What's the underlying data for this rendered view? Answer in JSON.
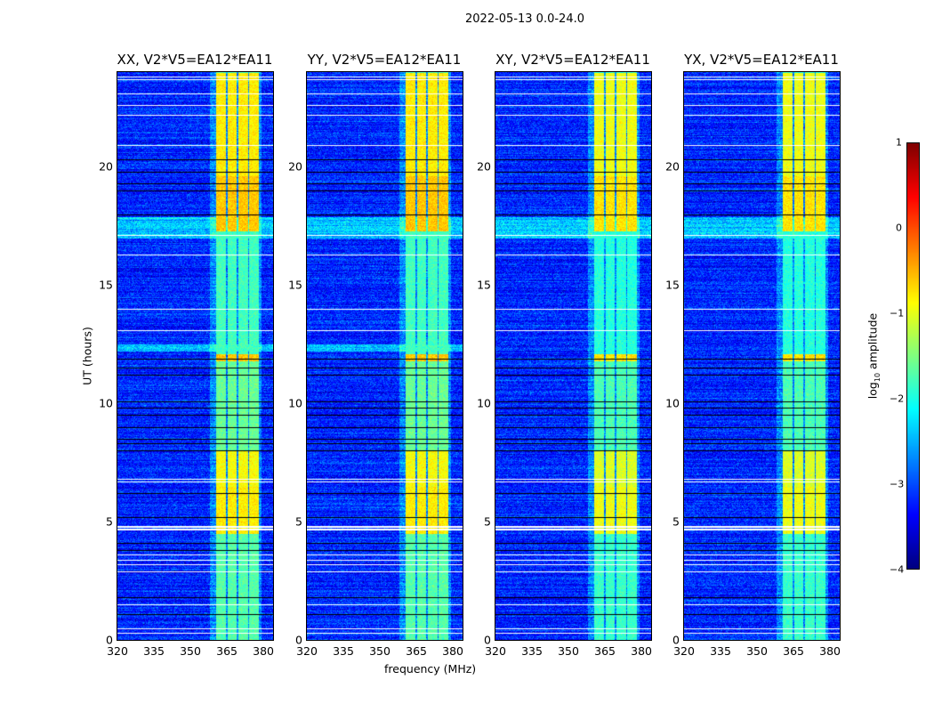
{
  "chart_data": {
    "type": "heatmap",
    "title": "2022-05-13 0.0-24.0",
    "panels": [
      {
        "title": "XX, V2*V5=EA12*EA11"
      },
      {
        "title": "YY, V2*V5=EA12*EA11"
      },
      {
        "title": "XY, V2*V5=EA12*EA11"
      },
      {
        "title": "YX, V2*V5=EA12*EA11"
      }
    ],
    "xlabel": "frequency (MHz)",
    "ylabel": "UT (hours)",
    "xlim": [
      320,
      384
    ],
    "ylim": [
      0,
      24
    ],
    "xticks": [
      "320",
      "335",
      "350",
      "365",
      "380"
    ],
    "xtick_values": [
      320,
      335,
      350,
      365,
      380
    ],
    "yticks": [
      "0",
      "5",
      "10",
      "15",
      "20"
    ],
    "ytick_values": [
      0,
      5,
      10,
      15,
      20
    ],
    "colorbar": {
      "label": "log10 amplitude",
      "label_main": "log",
      "label_sub": "10",
      "label_rest": " amplitude",
      "range": [
        -4,
        1
      ],
      "ticks": [
        "1",
        "0",
        "−1",
        "−2",
        "−3",
        "−4"
      ],
      "tick_values": [
        1,
        0,
        -1,
        -2,
        -3,
        -4
      ],
      "colormap": "jet"
    },
    "background_level": -3.2,
    "rfi_band_mhz": [
      [
        360.5,
        364.5
      ],
      [
        365,
        369
      ],
      [
        369.5,
        373.5
      ],
      [
        374,
        378
      ]
    ],
    "rfi_band_levels": [
      {
        "t": [
          0,
          4.5
        ],
        "level": -1.7
      },
      {
        "t": [
          4.5,
          6.5
        ],
        "level": -0.8
      },
      {
        "t": [
          6.5,
          8
        ],
        "level": -0.9
      },
      {
        "t": [
          8,
          11.8
        ],
        "level": -1.6
      },
      {
        "t": [
          11.8,
          12.1
        ],
        "level": -0.6
      },
      {
        "t": [
          12.1,
          17.3
        ],
        "level": -1.8
      },
      {
        "t": [
          17.3,
          19.6
        ],
        "level": -0.6
      },
      {
        "t": [
          19.6,
          24
        ],
        "level": -0.8
      }
    ],
    "flagged_hours": [
      0.3,
      0.5,
      1.5,
      2.9,
      3.2,
      3.4,
      3.6,
      4.7,
      4.8,
      6.7,
      6.8,
      13.1,
      14.0,
      16.3,
      17.1,
      20.9,
      22.2,
      22.6,
      23.1,
      23.7,
      23.8
    ],
    "zero_hours": [
      1.1,
      1.8,
      3.8,
      4.1,
      5.2,
      6.2,
      8.0,
      8.3,
      8.5,
      9.0,
      9.5,
      9.8,
      10.1,
      11.2,
      11.5,
      11.9,
      18.0,
      19.0,
      19.3,
      19.8,
      20.3
    ]
  }
}
